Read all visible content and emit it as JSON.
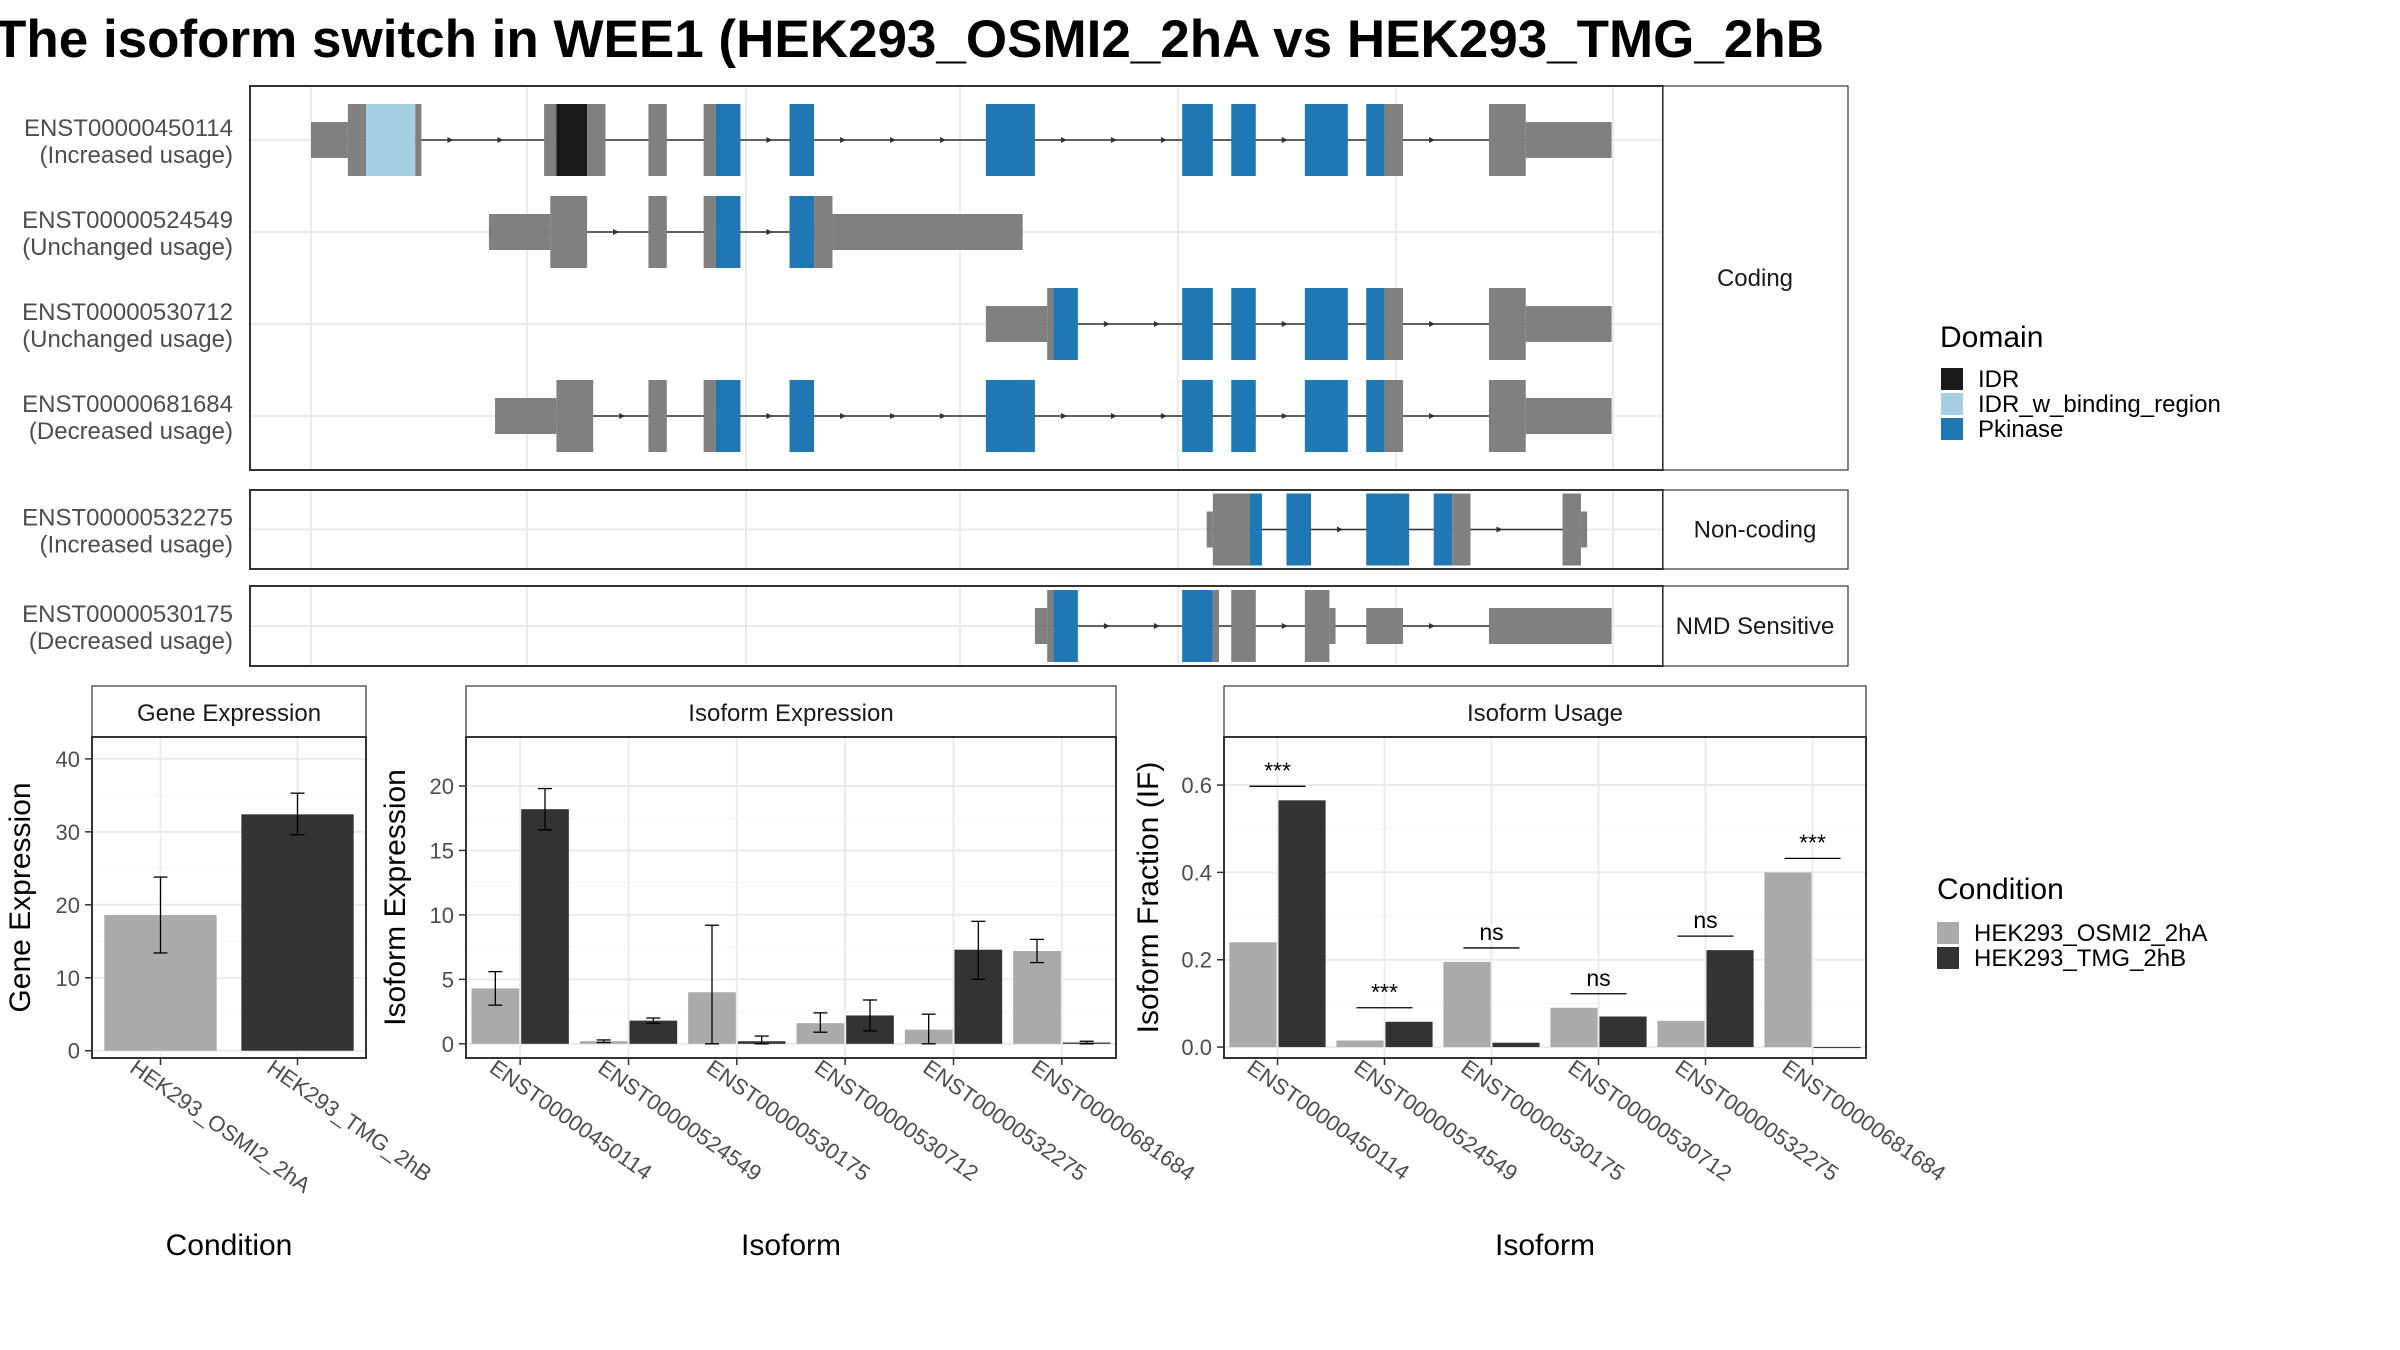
{
  "title": "The isoform switch in WEE1 (HEK293_OSMI2_2hA vs HEK293_TMG_2hB",
  "colors": {
    "IDR": "#1a1a1a",
    "IDR_w_binding_region": "#a6cee3",
    "Pkinase": "#1f78b4",
    "none": "#808080",
    "cond_a": "#aaaaaa",
    "cond_b": "#333333"
  },
  "structure": {
    "tracks": [
      {
        "panel": "Coding",
        "transcripts": [
          {
            "id": "ENST00000450114",
            "usage": "(Increased usage)",
            "segments": [
              [
                0,
                3,
                "utr"
              ],
              [
                3,
                4.5,
                "none"
              ],
              [
                4.5,
                8.5,
                "IDR_w_binding_region"
              ],
              [
                8.5,
                9,
                "none"
              ],
              [
                19,
                20,
                "none"
              ],
              [
                20,
                22.5,
                "IDR"
              ],
              [
                22.5,
                24,
                "none"
              ],
              [
                27.5,
                29,
                "none"
              ],
              [
                32,
                33,
                "none"
              ],
              [
                33,
                35,
                "Pkinase"
              ],
              [
                39,
                41,
                "Pkinase"
              ],
              [
                55,
                59,
                "Pkinase"
              ],
              [
                71,
                73.5,
                "Pkinase"
              ],
              [
                75,
                77,
                "Pkinase"
              ],
              [
                81,
                84.5,
                "Pkinase"
              ],
              [
                86,
                87.5,
                "Pkinase"
              ],
              [
                87.5,
                89,
                "none"
              ],
              [
                96,
                99,
                "none"
              ],
              [
                99,
                106,
                "utr"
              ]
            ]
          },
          {
            "id": "ENST00000524549",
            "usage": "(Unchanged usage)",
            "segments": [
              [
                14.5,
                19.5,
                "utr"
              ],
              [
                19.5,
                22.5,
                "none"
              ],
              [
                27.5,
                29,
                "none"
              ],
              [
                32,
                33,
                "none"
              ],
              [
                33,
                35,
                "Pkinase"
              ],
              [
                39,
                41,
                "Pkinase"
              ],
              [
                41,
                42.5,
                "none"
              ],
              [
                42.5,
                58,
                "utr"
              ]
            ]
          },
          {
            "id": "ENST00000530712",
            "usage": "(Unchanged usage)",
            "segments": [
              [
                55,
                60,
                "utr"
              ],
              [
                60,
                60.5,
                "none"
              ],
              [
                60.5,
                62.5,
                "Pkinase"
              ],
              [
                71,
                73.5,
                "Pkinase"
              ],
              [
                75,
                77,
                "Pkinase"
              ],
              [
                81,
                84.5,
                "Pkinase"
              ],
              [
                86,
                87.5,
                "Pkinase"
              ],
              [
                87.5,
                89,
                "none"
              ],
              [
                96,
                99,
                "none"
              ],
              [
                99,
                106,
                "utr"
              ]
            ]
          },
          {
            "id": "ENST00000681684",
            "usage": "(Decreased usage)",
            "segments": [
              [
                15,
                20,
                "utr"
              ],
              [
                20,
                23,
                "none"
              ],
              [
                27.5,
                29,
                "none"
              ],
              [
                32,
                33,
                "none"
              ],
              [
                33,
                35,
                "Pkinase"
              ],
              [
                39,
                41,
                "Pkinase"
              ],
              [
                55,
                59,
                "Pkinase"
              ],
              [
                71,
                73.5,
                "Pkinase"
              ],
              [
                75,
                77,
                "Pkinase"
              ],
              [
                81,
                84.5,
                "Pkinase"
              ],
              [
                86,
                87.5,
                "Pkinase"
              ],
              [
                87.5,
                89,
                "none"
              ],
              [
                96,
                99,
                "none"
              ],
              [
                99,
                106,
                "utr"
              ]
            ]
          }
        ]
      },
      {
        "panel": "Non-coding",
        "transcripts": [
          {
            "id": "ENST00000532275",
            "usage": "(Increased usage)",
            "segments": [
              [
                73,
                73.5,
                "utr"
              ],
              [
                73.5,
                76.5,
                "none"
              ],
              [
                76.5,
                77.5,
                "Pkinase"
              ],
              [
                79.5,
                81.5,
                "Pkinase"
              ],
              [
                86,
                89.5,
                "Pkinase"
              ],
              [
                91.5,
                93,
                "Pkinase"
              ],
              [
                93,
                94.5,
                "none"
              ],
              [
                102,
                103.5,
                "none"
              ],
              [
                103.5,
                104,
                "utr"
              ]
            ]
          }
        ]
      },
      {
        "panel": "NMD Sensitive",
        "transcripts": [
          {
            "id": "ENST00000530175",
            "usage": "(Decreased usage)",
            "segments": [
              [
                59,
                60,
                "utr"
              ],
              [
                60,
                60.5,
                "none"
              ],
              [
                60.5,
                62.5,
                "Pkinase"
              ],
              [
                71,
                73.5,
                "Pkinase"
              ],
              [
                73.5,
                74,
                "none"
              ],
              [
                75,
                77,
                "none"
              ],
              [
                81,
                83,
                "none"
              ],
              [
                83,
                83.5,
                "utr"
              ],
              [
                86,
                89,
                "utr"
              ],
              [
                96,
                106,
                "utr"
              ]
            ]
          }
        ]
      }
    ]
  },
  "legend_domain": {
    "title": "Domain",
    "items": [
      "IDR",
      "IDR_w_binding_region",
      "Pkinase"
    ]
  },
  "legend_condition": {
    "title": "Condition",
    "items": [
      "HEK293_OSMI2_2hA",
      "HEK293_TMG_2hB"
    ]
  },
  "chart_data": [
    {
      "type": "bar",
      "title": "Gene Expression",
      "xlabel": "Condition",
      "ylabel": "Gene Expression",
      "categories": [
        "HEK293_OSMI2_2hA",
        "HEK293_TMG_2hB"
      ],
      "values": [
        18.6,
        32.4
      ],
      "error": [
        [
          13.4,
          23.8
        ],
        [
          29.6,
          35.3
        ]
      ],
      "ylim": [
        -1,
        43
      ],
      "yticks": [
        0,
        10,
        20,
        30,
        40
      ]
    },
    {
      "type": "bar",
      "title": "Isoform Expression",
      "xlabel": "Isoform",
      "ylabel": "Isoform Expression",
      "categories": [
        "ENST00000450114",
        "ENST00000524549",
        "ENST00000530175",
        "ENST00000530712",
        "ENST00000532275",
        "ENST00000681684"
      ],
      "series": [
        {
          "name": "HEK293_OSMI2_2hA",
          "values": [
            4.3,
            0.2,
            4.0,
            1.6,
            1.1,
            7.2
          ],
          "error": [
            [
              3.0,
              5.6
            ],
            [
              0.1,
              0.3
            ],
            [
              0.0,
              9.2
            ],
            [
              0.9,
              2.4
            ],
            [
              0.0,
              2.3
            ],
            [
              6.3,
              8.1
            ]
          ]
        },
        {
          "name": "HEK293_TMG_2hB",
          "values": [
            18.2,
            1.8,
            0.2,
            2.2,
            7.3,
            0.1
          ],
          "error": [
            [
              16.6,
              19.8
            ],
            [
              1.6,
              2.0
            ],
            [
              0.0,
              0.6
            ],
            [
              1.0,
              3.4
            ],
            [
              5.0,
              9.5
            ],
            [
              0.0,
              0.2
            ]
          ]
        }
      ],
      "ylim": [
        -1.1,
        23.8
      ],
      "yticks": [
        0,
        5,
        10,
        15,
        20
      ]
    },
    {
      "type": "bar",
      "title": "Isoform Usage",
      "xlabel": "Isoform",
      "ylabel": "Isoform Fraction (IF)",
      "categories": [
        "ENST00000450114",
        "ENST00000524549",
        "ENST00000530175",
        "ENST00000530712",
        "ENST00000532275",
        "ENST00000681684"
      ],
      "series": [
        {
          "name": "HEK293_OSMI2_2hA",
          "values": [
            0.24,
            0.015,
            0.195,
            0.09,
            0.06,
            0.4
          ]
        },
        {
          "name": "HEK293_TMG_2hB",
          "values": [
            0.565,
            0.058,
            0.01,
            0.07,
            0.222,
            0.0
          ]
        }
      ],
      "significance": [
        "***",
        "***",
        "ns",
        "ns",
        "ns",
        "***"
      ],
      "ylim": [
        -0.025,
        0.71
      ],
      "yticks": [
        0.0,
        0.2,
        0.4,
        0.6
      ],
      "ytick_labels": [
        "0.0",
        "0.2",
        "0.4",
        "0.6"
      ]
    }
  ]
}
